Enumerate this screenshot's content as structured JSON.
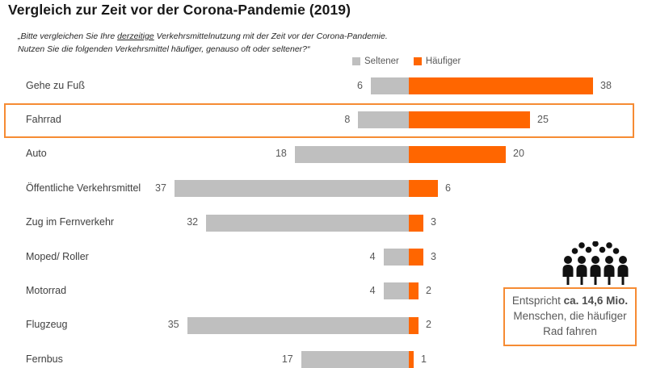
{
  "title": "Vergleich zur Zeit vor der Corona-Pandemie (2019)",
  "subtitle": {
    "line1_pre": "„Bitte vergleichen Sie Ihre ",
    "line1_underlined": "derzeitige",
    "line1_post": " Verkehrsmittelnutzung mit der Zeit vor der Corona-Pandemie.",
    "line2": "Nutzen Sie die folgenden Verkehrsmittel häufiger, genauso oft oder seltener?“"
  },
  "legend": {
    "position": "top",
    "items": [
      {
        "label": "Seltener",
        "color": "#BFBFBF"
      },
      {
        "label": "Häufiger",
        "color": "#FF6600"
      }
    ]
  },
  "chart_data": {
    "type": "bar",
    "orientation": "horizontal-diverging",
    "title": "Vergleich zur Zeit vor der Corona-Pandemie (2019)",
    "categories": [
      "Gehe zu Fuß",
      "Fahrrad",
      "Auto",
      "Öffentliche Verkehrsmittel",
      "Zug im Fernverkehr",
      "Moped/ Roller",
      "Motorrad",
      "Flugzeug",
      "Fernbus"
    ],
    "series": [
      {
        "name": "Seltener",
        "color": "#BFBFBF",
        "values": [
          6,
          8,
          18,
          37,
          32,
          4,
          4,
          35,
          17
        ]
      },
      {
        "name": "Häufiger",
        "color": "#FF6600",
        "values": [
          38,
          25,
          20,
          6,
          3,
          3,
          2,
          2,
          1
        ]
      }
    ],
    "value_labels": "outside",
    "highlighted_category": "Fahrrad",
    "legend_position": "top",
    "grid": false
  },
  "callout": {
    "text_pre": "Entspricht ",
    "text_bold": "ca. 14,6 Mio.",
    "text_post": " Menschen, die häufiger Rad fahren",
    "border_color": "#F68B33",
    "icon": "crowd-icon"
  },
  "colors": {
    "seltener": "#BFBFBF",
    "haeufiger": "#FF6600",
    "highlight_border": "#F68B33",
    "text_dark": "#404040",
    "text_value": "#595959"
  }
}
